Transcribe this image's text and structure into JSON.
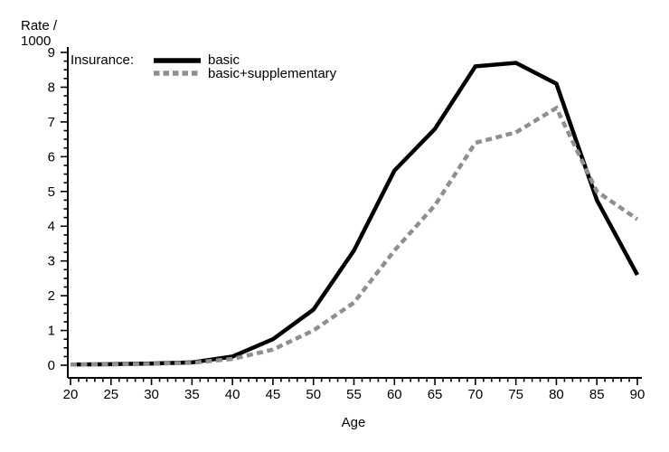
{
  "y_axis": {
    "title_line1": "Rate /",
    "title_line2": "1000",
    "ticks": [
      0,
      1,
      2,
      3,
      4,
      5,
      6,
      7,
      8,
      9
    ],
    "minor_step": 0.25,
    "range": [
      0,
      9
    ]
  },
  "x_axis": {
    "title": "Age",
    "ticks": [
      20,
      25,
      30,
      35,
      40,
      45,
      50,
      55,
      60,
      65,
      70,
      75,
      80,
      85,
      90
    ],
    "minor_step": 1,
    "range": [
      20,
      90
    ]
  },
  "legend": {
    "title": "Insurance:",
    "entries": [
      {
        "label": "basic",
        "line_style": "solid",
        "color": "#000000"
      },
      {
        "label": "basic+supplementary",
        "line_style": "dashed",
        "color": "#8f8f8f"
      }
    ]
  },
  "colors": {
    "axis": "#000000",
    "text": "#000000",
    "series_basic": "#000000",
    "series_supplementary": "#8f8f8f"
  },
  "chart_data": {
    "type": "line",
    "title": "",
    "xlabel": "Age",
    "ylabel": "Rate / 1000",
    "x": [
      20,
      25,
      30,
      35,
      40,
      45,
      50,
      55,
      60,
      65,
      70,
      75,
      80,
      85,
      90
    ],
    "series": [
      {
        "name": "basic",
        "color": "#000000",
        "style": "solid",
        "values": [
          0.02,
          0.03,
          0.05,
          0.08,
          0.25,
          0.75,
          1.6,
          3.3,
          5.6,
          6.8,
          8.6,
          8.7,
          8.1,
          4.75,
          2.6
        ]
      },
      {
        "name": "basic+supplementary",
        "color": "#8f8f8f",
        "style": "dashed",
        "values": [
          0.02,
          0.02,
          0.04,
          0.07,
          0.18,
          0.45,
          1.0,
          1.8,
          3.3,
          4.6,
          6.4,
          6.7,
          7.4,
          5.0,
          4.2
        ]
      }
    ],
    "xlim": [
      20,
      90
    ],
    "ylim": [
      0,
      9
    ],
    "x_major_step": 5,
    "x_minor_step": 1,
    "y_major_step": 1,
    "y_minor_step": 0.25,
    "grid": false,
    "legend_position": "top-left-inside"
  }
}
